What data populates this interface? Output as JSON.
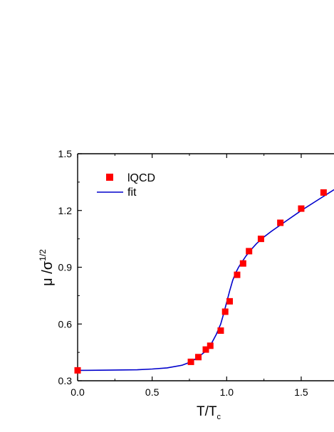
{
  "chart_data": {
    "type": "scatter",
    "xlabel": {
      "main": "T/T",
      "sub": "c"
    },
    "ylabel": {
      "main": "μ /σ",
      "sup": "1/2"
    },
    "xlim": [
      0.0,
      1.72
    ],
    "ylim": [
      0.3,
      1.5
    ],
    "x_ticks": [
      "0.0",
      "0.5",
      "1.0",
      "1.5"
    ],
    "y_ticks": [
      "0.3",
      "0.6",
      "0.9",
      "1.2",
      "1.5"
    ],
    "x_tick_values": [
      0.0,
      0.5,
      1.0,
      1.5
    ],
    "y_tick_values": [
      0.3,
      0.6,
      0.9,
      1.2,
      1.5
    ],
    "legend": {
      "position": "top-left",
      "entries": [
        "lQCD",
        "fit"
      ]
    },
    "colors": {
      "points": "#ff0000",
      "fit": "#0000cc",
      "axis": "#000000"
    },
    "series": [
      {
        "name": "lQCD",
        "kind": "points",
        "x": [
          0.0,
          0.76,
          0.81,
          0.86,
          0.89,
          0.96,
          0.99,
          1.02,
          1.07,
          1.11,
          1.15,
          1.23,
          1.36,
          1.5,
          1.65
        ],
        "y": [
          0.355,
          0.4,
          0.425,
          0.465,
          0.485,
          0.565,
          0.665,
          0.72,
          0.86,
          0.92,
          0.985,
          1.05,
          1.135,
          1.21,
          1.295
        ]
      },
      {
        "name": "fit",
        "kind": "line",
        "x": [
          0.0,
          0.2,
          0.4,
          0.5,
          0.6,
          0.7,
          0.76,
          0.8,
          0.85,
          0.9,
          0.93,
          0.96,
          0.98,
          1.0,
          1.02,
          1.04,
          1.06,
          1.08,
          1.1,
          1.13,
          1.16,
          1.2,
          1.25,
          1.3,
          1.4,
          1.5,
          1.6,
          1.72
        ],
        "y": [
          0.355,
          0.356,
          0.358,
          0.362,
          0.368,
          0.382,
          0.4,
          0.42,
          0.45,
          0.5,
          0.545,
          0.6,
          0.655,
          0.715,
          0.775,
          0.83,
          0.87,
          0.9,
          0.925,
          0.96,
          0.99,
          1.025,
          1.06,
          1.09,
          1.145,
          1.2,
          1.25,
          1.31
        ]
      }
    ]
  }
}
